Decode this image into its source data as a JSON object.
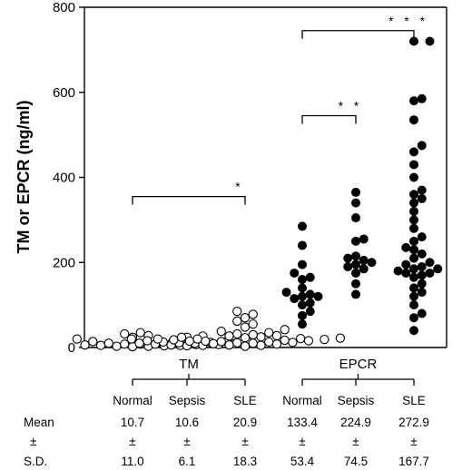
{
  "chart_data": {
    "type": "scatter",
    "ylabel": "TM or EPCR (ng/ml)",
    "ylim": [
      0,
      800
    ],
    "yticks": [
      0,
      200,
      400,
      600,
      800
    ],
    "grid": false,
    "groups": [
      {
        "name": "TM",
        "categories": [
          0,
          1,
          2
        ]
      },
      {
        "name": "EPCR",
        "categories": [
          3,
          4,
          5
        ]
      }
    ],
    "categories": [
      "Normal",
      "Sepsis",
      "SLE",
      "Normal",
      "Sepsis",
      "SLE"
    ],
    "row_labels": {
      "mean": "Mean",
      "pm": "±",
      "sd": "S.D."
    },
    "series": [
      {
        "category": "Normal",
        "group": "TM",
        "marker": "open",
        "mean": "10.7",
        "pm": "±",
        "sd": "11.0",
        "values": [
          2,
          3,
          4,
          5,
          6,
          7,
          8,
          9,
          10,
          12,
          14,
          16,
          20,
          24,
          28,
          32,
          35,
          3,
          5,
          8
        ]
      },
      {
        "category": "Sepsis",
        "group": "TM",
        "marker": "open",
        "mean": "10.6",
        "pm": "±",
        "sd": "6.1",
        "values": [
          4,
          5,
          6,
          7,
          8,
          9,
          10,
          11,
          12,
          13,
          14,
          16,
          18,
          20,
          24,
          27,
          10,
          12
        ]
      },
      {
        "category": "SLE",
        "group": "TM",
        "marker": "open",
        "mean": "20.9",
        "pm": "±",
        "sd": "18.3",
        "values": [
          3,
          5,
          6,
          8,
          9,
          10,
          11,
          12,
          13,
          14,
          15,
          16,
          17,
          18,
          19,
          20,
          21,
          22,
          23,
          24,
          25,
          27,
          28,
          30,
          32,
          35,
          38,
          42,
          48,
          55,
          62,
          70,
          78,
          85,
          15,
          20
        ]
      },
      {
        "category": "Normal",
        "group": "EPCR",
        "marker": "filled",
        "mean": "133.4",
        "pm": "±",
        "sd": "53.4",
        "values": [
          55,
          75,
          85,
          100,
          105,
          115,
          120,
          120,
          125,
          130,
          140,
          160,
          165,
          175,
          195,
          240,
          285
        ]
      },
      {
        "category": "Sepsis",
        "group": "EPCR",
        "marker": "filled",
        "mean": "224.9",
        "pm": "±",
        "sd": "74.5",
        "values": [
          125,
          150,
          175,
          185,
          190,
          195,
          200,
          205,
          210,
          215,
          250,
          255,
          305,
          340,
          365
        ]
      },
      {
        "category": "SLE",
        "group": "EPCR",
        "marker": "filled",
        "mean": "272.9",
        "pm": "±",
        "sd": "167.7",
        "values": [
          40,
          70,
          80,
          100,
          120,
          130,
          140,
          150,
          165,
          170,
          175,
          180,
          185,
          190,
          200,
          210,
          220,
          230,
          235,
          250,
          260,
          280,
          300,
          320,
          340,
          350,
          360,
          370,
          400,
          430,
          460,
          475,
          535,
          580,
          585,
          720,
          720,
          175,
          185,
          195
        ]
      }
    ],
    "significance": [
      {
        "label": "*",
        "from": 0,
        "to": 2,
        "y": 355
      },
      {
        "label": "* *",
        "from": 3,
        "to": 4,
        "y": 545
      },
      {
        "label": "* * *",
        "from": 3,
        "to": 5,
        "y": 745
      }
    ]
  }
}
